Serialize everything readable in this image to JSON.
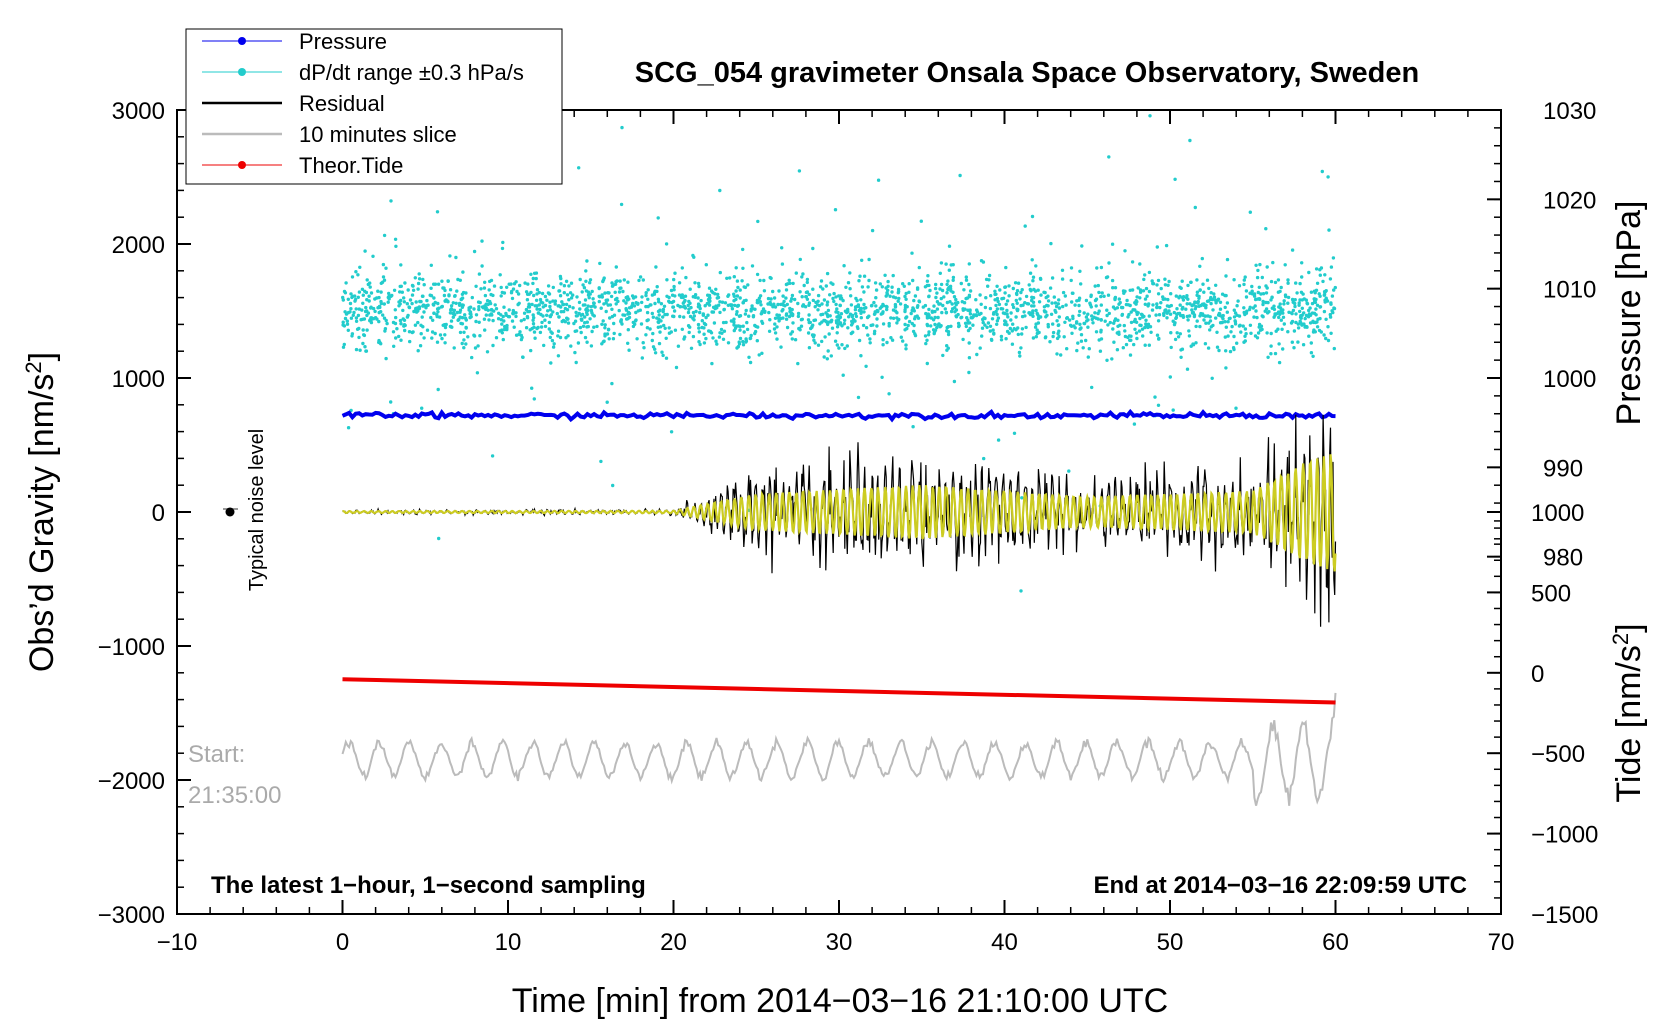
{
  "chart_data": {
    "type": "line",
    "title": "SCG_054 gravimeter Onsala Space Observatory, Sweden",
    "xlabel": "Time [min] from 2014−03−16 21:10:00 UTC",
    "ylabel_left": "Obs’d Gravity [nm/s",
    "ylabel_left_sup": "2",
    "ylabel_left_close": "]",
    "ylabel_pressure": "Pressure [hPa]",
    "ylabel_tide": "Tide [nm/s",
    "ylabel_tide_sup": "2",
    "ylabel_tide_close": "]",
    "xlim": [
      -10,
      70
    ],
    "ylim": [
      -3000,
      3000
    ],
    "xticks": [
      -10,
      0,
      10,
      20,
      30,
      40,
      50,
      60,
      70
    ],
    "xtick_labels": [
      "−10",
      "0",
      "10",
      "20",
      "30",
      "40",
      "50",
      "60",
      "70"
    ],
    "yticks": [
      -3000,
      -2000,
      -1000,
      0,
      1000,
      2000,
      3000
    ],
    "ytick_labels": [
      "−3000",
      "−2000",
      "−1000",
      "0",
      "1000",
      "2000",
      "3000"
    ],
    "pressure_axis": {
      "range": [
        940,
        1030
      ],
      "ticks": [
        980,
        990,
        1000,
        1010,
        1020,
        1030
      ],
      "tick_labels": [
        "980",
        "990",
        "1000",
        "1010",
        "1020",
        "1030"
      ]
    },
    "tide_axis": {
      "range": [
        -1500,
        3500
      ],
      "ticks": [
        -1500,
        -1000,
        -500,
        0,
        500,
        1000
      ],
      "tick_labels": [
        "−1500",
        "−1000",
        "−500",
        "0",
        "500",
        "1000"
      ]
    },
    "legend": {
      "position": "top-left",
      "entries": [
        {
          "name": "Pressure",
          "color": "#0000ee",
          "style": "line-dot"
        },
        {
          "name": "dP/dt range ±0.3 hPa/s",
          "color": "#22cccc",
          "style": "line-dot"
        },
        {
          "name": "Residual",
          "color": "#000000",
          "style": "line"
        },
        {
          "name": "10 minutes slice",
          "color": "#bbbbbb",
          "style": "line"
        },
        {
          "name": "Theor.Tide",
          "color": "#ee0000",
          "style": "line-dot"
        }
      ]
    },
    "series": [
      {
        "name": "Pressure",
        "axis": "pressure",
        "x": [
          0,
          60
        ],
        "values": [
          995.8,
          995.8
        ]
      },
      {
        "name": "Theor.Tide",
        "axis": "tide",
        "x": [
          0,
          60
        ],
        "values": [
          -40,
          -185
        ]
      },
      {
        "name": "dP/dt range",
        "axis": "left",
        "center": 1500,
        "spread": 250
      },
      {
        "name": "Residual",
        "axis": "left",
        "x": [
          0,
          20,
          25,
          35,
          45,
          55,
          58,
          60
        ],
        "amplitude": [
          15,
          20,
          300,
          450,
          250,
          350,
          800,
          1000
        ]
      },
      {
        "name": "10 minutes slice",
        "axis": "left",
        "center": -1850,
        "amplitude": 150
      }
    ],
    "annotations": {
      "noise_label": "Typical noise level",
      "start_line1": "Start:",
      "start_line2": "21:35:00",
      "bottom_left": "The latest 1−hour, 1−second sampling",
      "bottom_right": "End at 2014−03−16 22:09:59 UTC"
    }
  }
}
